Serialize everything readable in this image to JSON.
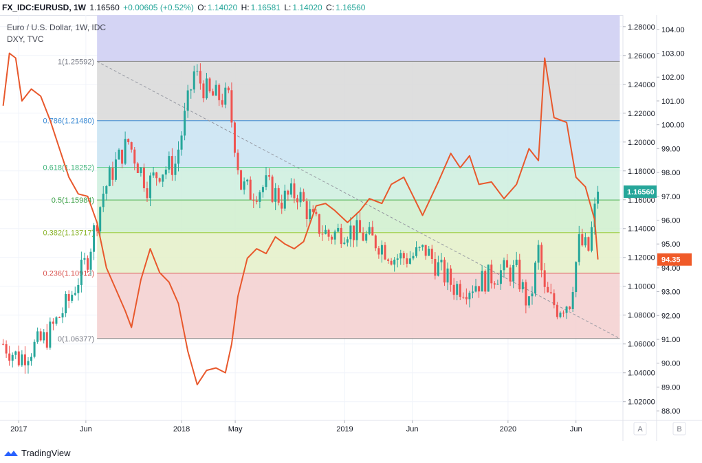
{
  "header": {
    "symbol": "FX_IDC:EURUSD, 1W",
    "last": "1.16560",
    "change": "+0.00605 (+0.52%)",
    "o_label": "O:",
    "o_value": "1.14020",
    "h_label": "H:",
    "h_value": "1.16581",
    "l_label": "L:",
    "l_value": "1.14020",
    "c_label": "C:",
    "c_value": "1.16560"
  },
  "legend": {
    "main": "Euro / U.S. Dollar, 1W, IDC",
    "compare": "DXY, TVC"
  },
  "footer": {
    "brand": "TradingView",
    "scale_a": "A",
    "scale_b": "B"
  },
  "colors": {
    "candle_up": "#26a69a",
    "candle_down": "#ef5350",
    "compare_line": "#e8582c",
    "price_badge": "#26a69a",
    "compare_badge": "#f05a28"
  },
  "chart_data": {
    "type": "line",
    "title": "Euro / U.S. Dollar, 1W, IDC",
    "series": [
      {
        "name": "DXY, TVC",
        "x": [
          "2016-11-28",
          "2016-12-12",
          "2016-12-26",
          "2017-01-09",
          "2017-01-30",
          "2017-02-20",
          "2017-03-13",
          "2017-04-03",
          "2017-04-24",
          "2017-05-15",
          "2017-06-05",
          "2017-06-26",
          "2017-07-17",
          "2017-08-07",
          "2017-08-28",
          "2017-09-11",
          "2017-10-02",
          "2017-10-23",
          "2017-11-13",
          "2017-12-04",
          "2017-12-25",
          "2018-01-15",
          "2018-02-05",
          "2018-02-26",
          "2018-03-19",
          "2018-04-09",
          "2018-04-23",
          "2018-05-07",
          "2018-05-28",
          "2018-06-18",
          "2018-07-09",
          "2018-07-30",
          "2018-08-20",
          "2018-09-10",
          "2018-10-01",
          "2018-10-29",
          "2018-11-19",
          "2018-12-10",
          "2019-01-07",
          "2019-02-04",
          "2019-02-25",
          "2019-03-25",
          "2019-04-15",
          "2019-05-13",
          "2019-06-03",
          "2019-06-24",
          "2019-07-29",
          "2019-08-26",
          "2019-09-16",
          "2019-10-07",
          "2019-10-28",
          "2019-11-25",
          "2019-12-23",
          "2020-01-20",
          "2020-02-17",
          "2020-03-09",
          "2020-03-23",
          "2020-04-13",
          "2020-05-11",
          "2020-06-01",
          "2020-06-22",
          "2020-07-13",
          "2020-07-20"
        ],
        "values": [
          100.8,
          103.0,
          102.8,
          101.0,
          101.5,
          101.2,
          100.2,
          99.0,
          97.8,
          97.1,
          97.0,
          95.9,
          94.0,
          93.1,
          92.2,
          91.5,
          93.5,
          94.8,
          93.8,
          93.4,
          92.5,
          90.5,
          89.1,
          89.7,
          89.8,
          89.6,
          90.8,
          92.8,
          94.4,
          94.8,
          94.6,
          95.3,
          95.0,
          94.8,
          95.1,
          96.6,
          96.7,
          96.4,
          95.9,
          96.4,
          96.9,
          96.7,
          97.5,
          97.8,
          97.0,
          96.2,
          97.6,
          98.8,
          98.2,
          98.7,
          97.5,
          97.6,
          96.9,
          97.5,
          99.0,
          98.5,
          102.8,
          100.3,
          100.1,
          97.8,
          97.4,
          96.0,
          94.35
        ]
      },
      {
        "name": "EURUSD (close)",
        "x": [
          "2016-11-28",
          "2017-01-02",
          "2017-03-06",
          "2017-04-24",
          "2017-06-05",
          "2017-07-10",
          "2017-08-07",
          "2017-09-04",
          "2017-10-16",
          "2017-11-13",
          "2017-12-18",
          "2018-01-29",
          "2018-03-05",
          "2018-04-16",
          "2018-05-14",
          "2018-06-04",
          "2018-07-09",
          "2018-08-13",
          "2018-09-17",
          "2018-10-22",
          "2018-11-26",
          "2019-01-07",
          "2019-02-11",
          "2019-03-18",
          "2019-04-22",
          "2019-05-27",
          "2019-07-01",
          "2019-08-05",
          "2019-09-02",
          "2019-10-07",
          "2019-11-11",
          "2019-12-16",
          "2020-01-20",
          "2020-02-17",
          "2020-03-09",
          "2020-03-23",
          "2020-04-20",
          "2020-05-18",
          "2020-06-08",
          "2020-06-29",
          "2020-07-20"
        ],
        "values": [
          1.06,
          1.05,
          1.065,
          1.09,
          1.12,
          1.165,
          1.185,
          1.2,
          1.17,
          1.18,
          1.185,
          1.248,
          1.232,
          1.23,
          1.17,
          1.165,
          1.17,
          1.16,
          1.165,
          1.145,
          1.135,
          1.14,
          1.135,
          1.13,
          1.12,
          1.12,
          1.125,
          1.11,
          1.1,
          1.1,
          1.105,
          1.11,
          1.11,
          1.085,
          1.125,
          1.095,
          1.085,
          1.09,
          1.13,
          1.125,
          1.1656
        ]
      }
    ],
    "fibonacci": [
      {
        "label": "1(1.25592)",
        "value": 1.25592
      },
      {
        "label": "0.786(1.21480)",
        "value": 1.2148
      },
      {
        "label": "0.618(1.18252)",
        "value": 1.18252
      },
      {
        "label": "0.5(1.15984)",
        "value": 1.15984
      },
      {
        "label": "0.382(1.13717)",
        "value": 1.13717
      },
      {
        "label": "0.236(1.10912)",
        "value": 1.10912
      },
      {
        "label": "0(1.06377)",
        "value": 1.06377
      }
    ],
    "x_ticks": [
      "2017",
      "Jun",
      "2018",
      "May",
      "2019",
      "Jun",
      "2020",
      "Jun"
    ],
    "x_tick_dates": [
      "2017-01-02",
      "2017-06-01",
      "2018-01-01",
      "2018-05-01",
      "2019-01-01",
      "2019-06-01",
      "2020-01-01",
      "2020-06-01"
    ],
    "x_range": [
      "2016-11-21",
      "2020-09-14"
    ],
    "y_ticks": [
      "1.28000",
      "1.26000",
      "1.24000",
      "1.22000",
      "1.20000",
      "1.18000",
      "1.16000",
      "1.14000",
      "1.12000",
      "1.10000",
      "1.08000",
      "1.06000",
      "1.04000",
      "1.02000"
    ],
    "y_range": [
      1.007,
      1.288
    ],
    "y2_ticks": [
      "104.00",
      "103.00",
      "102.00",
      "101.00",
      "100.00",
      "99.00",
      "98.00",
      "97.00",
      "96.00",
      "95.00",
      "94.00",
      "93.00",
      "92.00",
      "91.00",
      "90.00",
      "89.00",
      "88.00"
    ],
    "y2_range": [
      87.6,
      104.6
    ],
    "price_label": "1.16560",
    "compare_label": "94.35",
    "grid": true
  }
}
